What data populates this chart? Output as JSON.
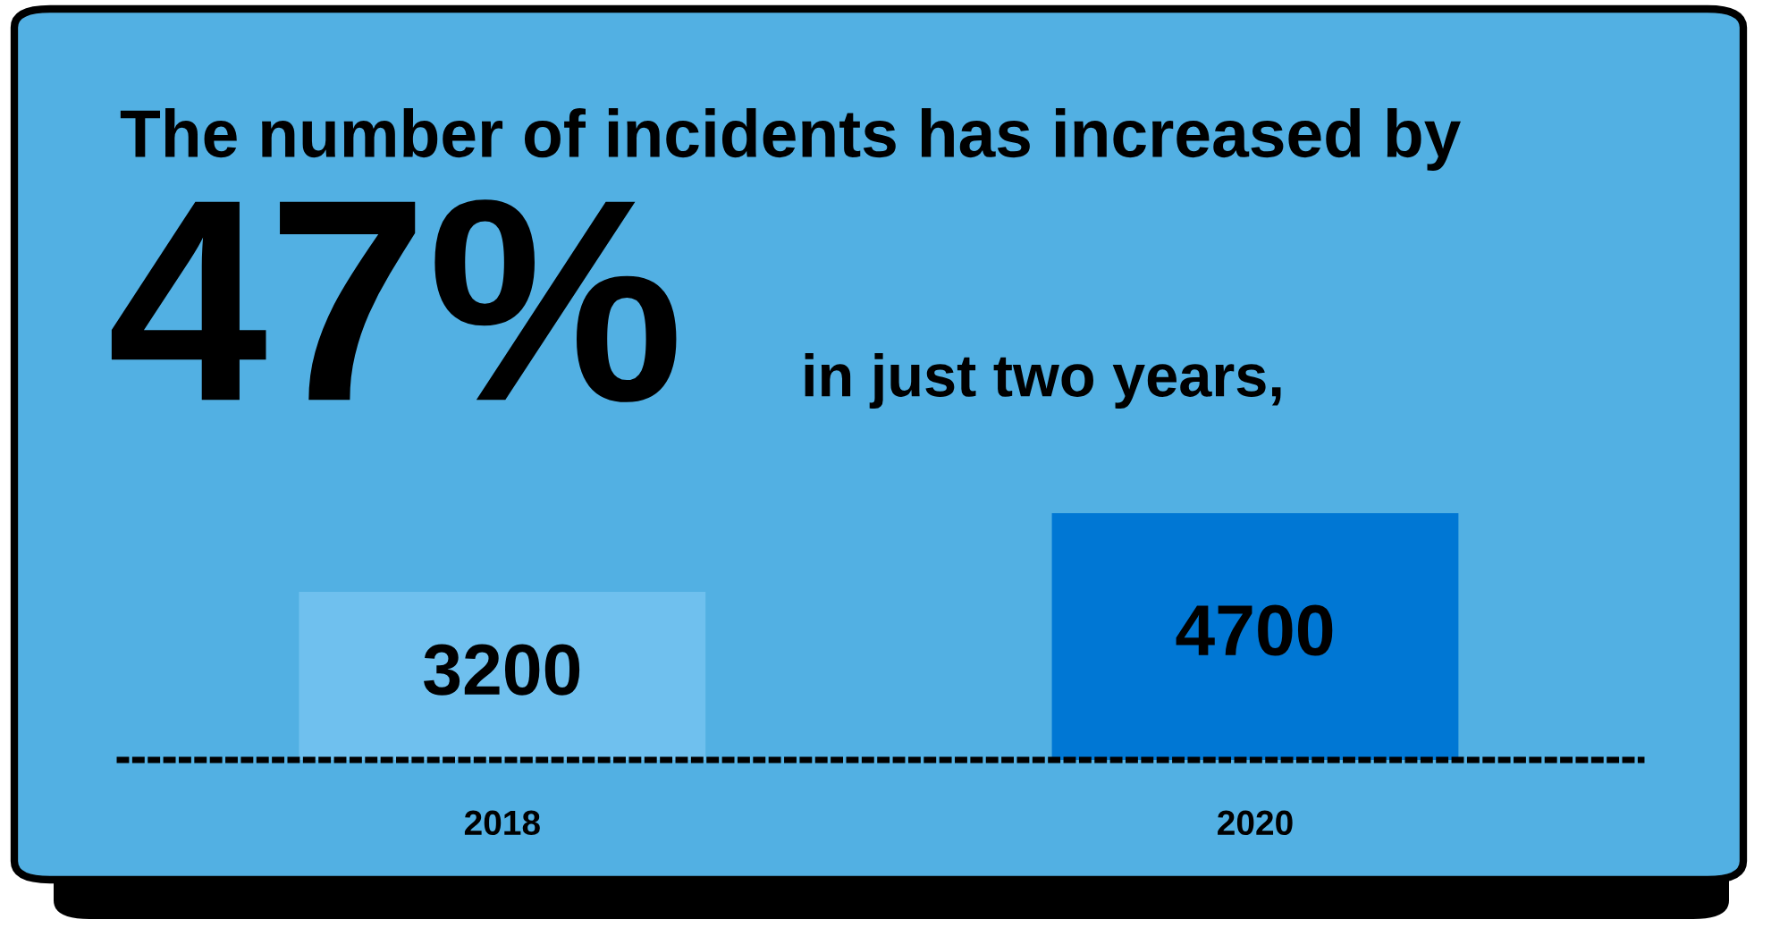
{
  "chart_data": {
    "type": "bar",
    "title": "The number of incidents has increased by",
    "annotations": [
      "47%",
      "in just two years,"
    ],
    "categories": [
      "2018",
      "2020"
    ],
    "values": [
      3200,
      4700
    ],
    "colors": [
      "#6fc0ee",
      "#0077d4"
    ],
    "data_labels": true,
    "grid": false,
    "legend": false,
    "tick_labels": "x"
  }
}
